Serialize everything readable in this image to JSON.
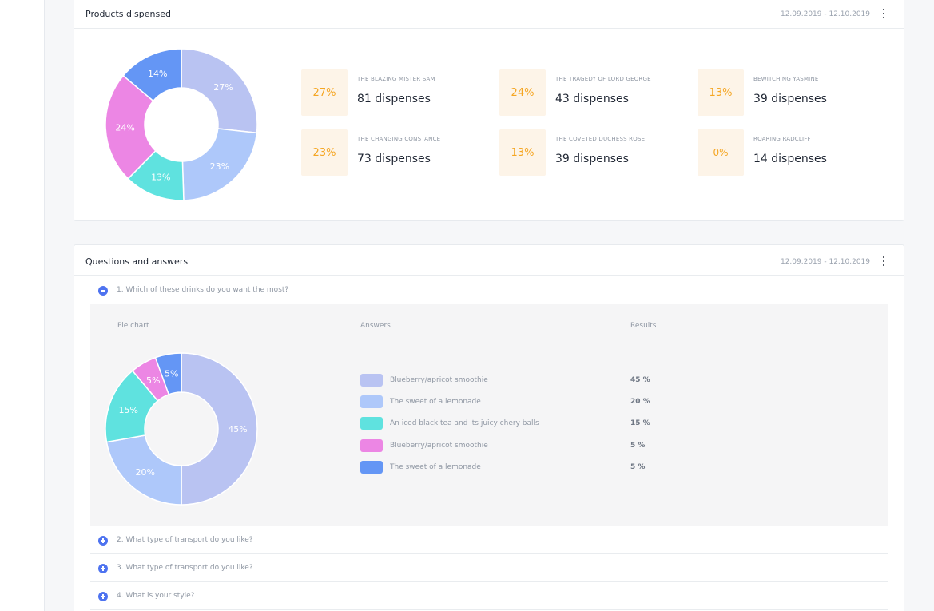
{
  "colors": {
    "lavender": "#b9c3f2",
    "light_blue": "#aec8fa",
    "teal": "#5fe2df",
    "pink": "#ec86e4",
    "blue": "#6496f5",
    "badge_bg": "#fdf4e8",
    "badge_text": "#f5a623",
    "accent": "#4e73f0"
  },
  "products": {
    "title": "Products dispensed",
    "date_range": "12.09.2019 - 12.10.2019",
    "menu_icon": "more-vertical-icon",
    "items": [
      {
        "pct": "27%",
        "name": "THE BLAZING MISTER SAM",
        "value": "81 dispenses"
      },
      {
        "pct": "24%",
        "name": "THE TRAGEDY OF LORD GEORGE",
        "value": "43 dispenses"
      },
      {
        "pct": "13%",
        "name": "BEWITCHING YASMINE",
        "value": "39 dispenses"
      },
      {
        "pct": "23%",
        "name": "THE CHANGING CONSTANCE",
        "value": "73 dispenses"
      },
      {
        "pct": "13%",
        "name": "THE COVETED DUCHESS ROSE",
        "value": "39 dispenses"
      },
      {
        "pct": "0%",
        "name": "ROARING RADCLIFF",
        "value": "14 dispenses"
      }
    ]
  },
  "qa": {
    "title": "Questions and answers",
    "date_range": "12.09.2019 - 12.10.2019",
    "menu_icon": "more-vertical-icon",
    "questions": [
      {
        "label": "1. Which of these drinks do you want the most?",
        "expanded": true
      },
      {
        "label": "2. What type of transport do you like?",
        "expanded": false
      },
      {
        "label": "3. What type of transport do you like?",
        "expanded": false
      },
      {
        "label": "4. What is your style?",
        "expanded": false
      }
    ],
    "col_pie": "Pie chart",
    "col_answers": "Answers",
    "col_results": "Results",
    "answers": [
      {
        "label": "Blueberry/apricot smoothie",
        "result": "45 %",
        "color": "#b9c3f2"
      },
      {
        "label": "The sweet of a lemonade",
        "result": "20 %",
        "color": "#aec8fa"
      },
      {
        "label": "An iced black tea and its juicy chery balls",
        "result": "15 %",
        "color": "#5fe2df"
      },
      {
        "label": "Blueberry/apricot smoothie",
        "result": "5 %",
        "color": "#ec86e4"
      },
      {
        "label": "The sweet of a lemonade",
        "result": "5 %",
        "color": "#6496f5"
      }
    ]
  },
  "chart_data": [
    {
      "type": "pie",
      "title": "",
      "categories": [
        "",
        "",
        "",
        "",
        ""
      ],
      "values": [
        27,
        23,
        13,
        24,
        14
      ],
      "labels": [
        "27%",
        "23%",
        "13%",
        "24%",
        "14%"
      ],
      "colors": [
        "#b9c3f2",
        "#aec8fa",
        "#5fe2df",
        "#ec86e4",
        "#6496f5"
      ],
      "donut": true
    },
    {
      "type": "pie",
      "title": "",
      "categories": [
        "Blueberry/apricot smoothie",
        "The sweet of a lemonade",
        "An iced black tea and its juicy chery balls",
        "Blueberry/apricot smoothie",
        "The sweet of a lemonade"
      ],
      "values": [
        45,
        20,
        15,
        5,
        5
      ],
      "labels": [
        "45%",
        "20%",
        "15%",
        "5%",
        "5%"
      ],
      "colors": [
        "#b9c3f2",
        "#aec8fa",
        "#5fe2df",
        "#ec86e4",
        "#6496f5"
      ],
      "donut": true
    }
  ]
}
